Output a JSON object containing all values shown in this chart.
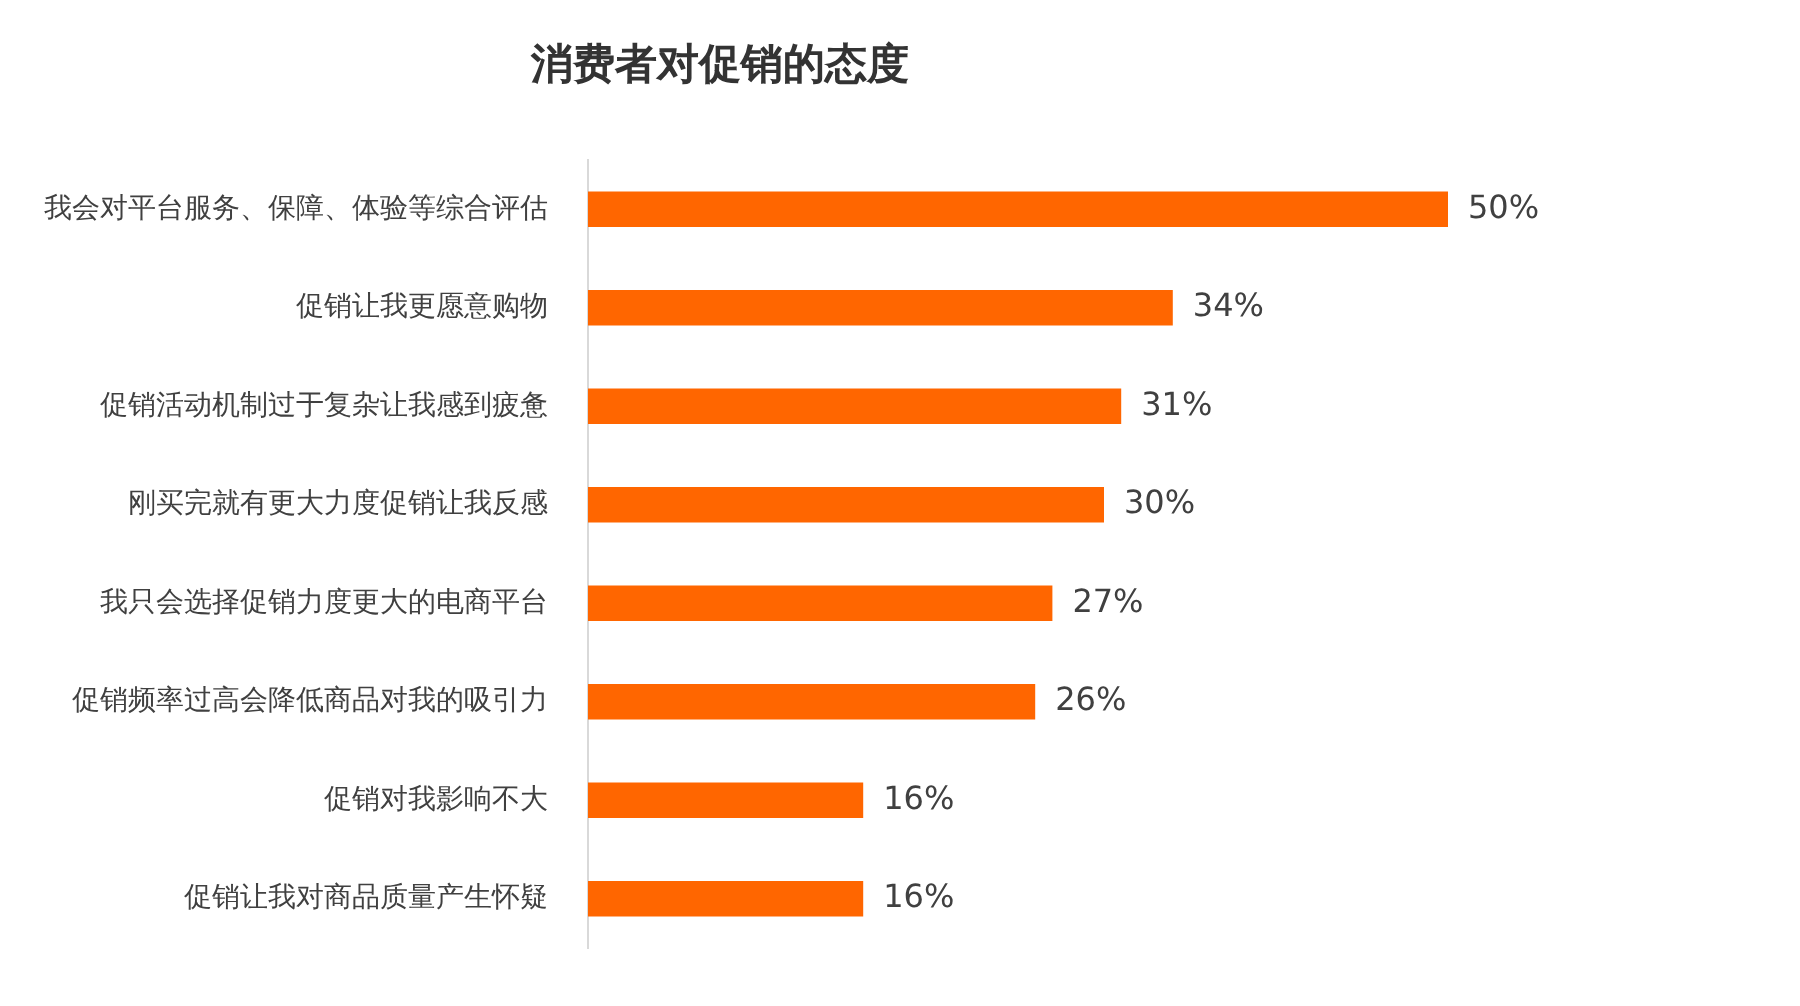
{
  "chart_data": {
    "type": "bar",
    "orientation": "horizontal",
    "title": "消费者对促销的态度",
    "categories": [
      "我会对平台服务、保障、体验等综合评估",
      "促销让我更愿意购物",
      "促销活动机制过于复杂让我感到疲惫",
      "刚买完就有更大力度促销让我反感",
      "我只会选择促销力度更大的电商平台",
      "促销频率过高会降低商品对我的吸引力",
      "促销对我影响不大",
      "促销让我对商品质量产生怀疑"
    ],
    "values": [
      50,
      34,
      31,
      30,
      27,
      26,
      16,
      16
    ],
    "value_labels": [
      "50%",
      "34%",
      "31%",
      "30%",
      "27%",
      "26%",
      "16%",
      "16%"
    ],
    "color": "#ff6600",
    "tick_labels": "y",
    "grid": false,
    "legend": false
  }
}
